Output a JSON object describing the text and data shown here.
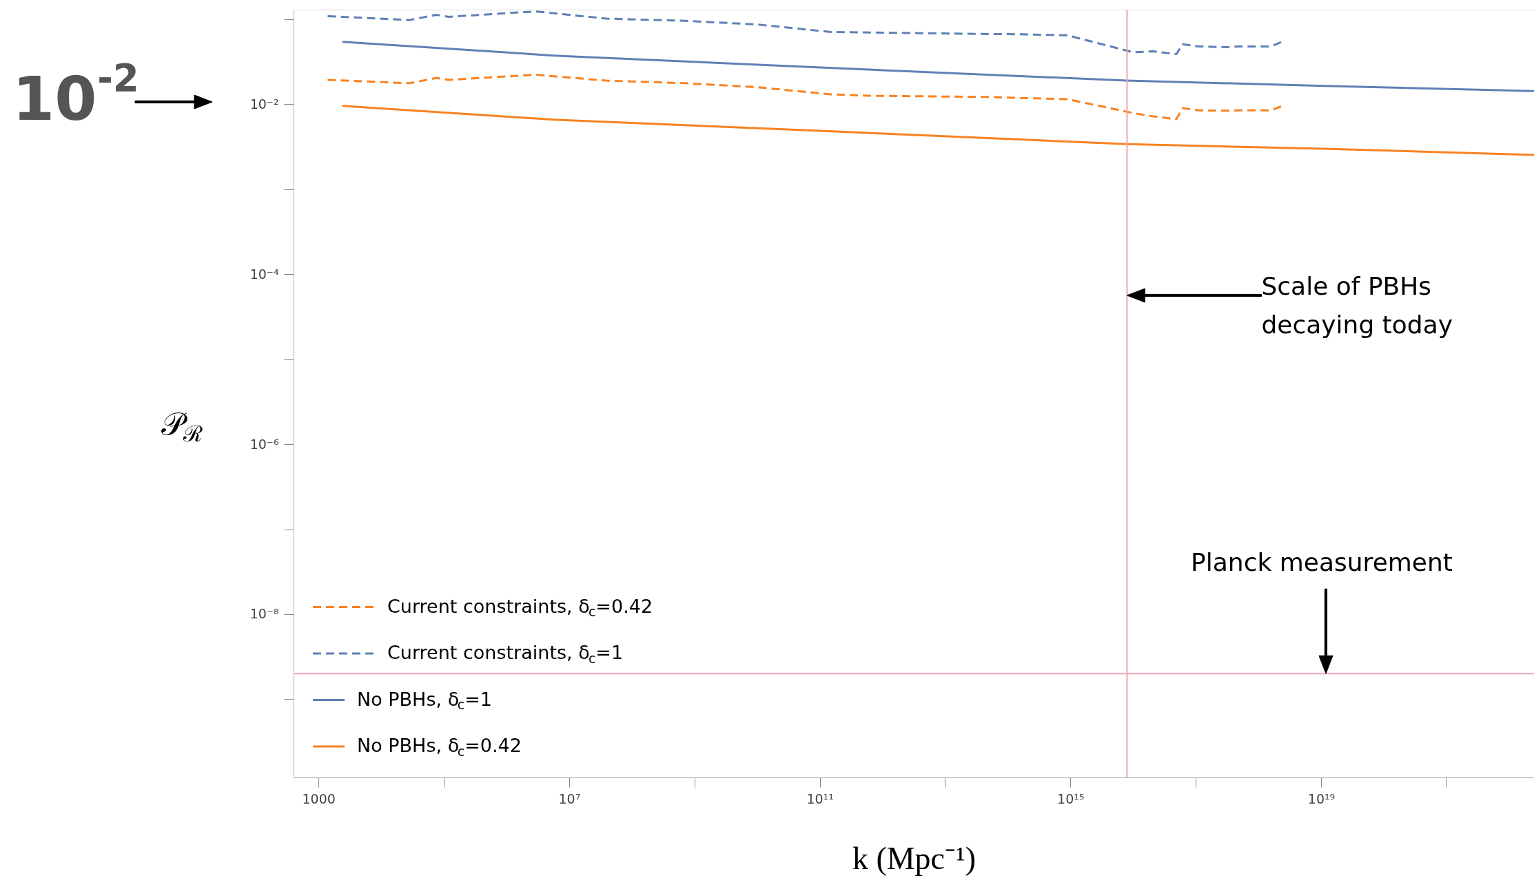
{
  "chart_data": {
    "type": "line",
    "xlabel": "k (Mpc⁻¹)",
    "ylabel": "𝒫$_{ℛ}$",
    "log": "xy",
    "grid": false,
    "legend": "bottom left",
    "xlim": [
      400,
      2.5e+22
    ],
    "ylim": [
      1.2e-10,
      0.13
    ],
    "xticks": [
      1000,
      {
        "value": 100000.0,
        "label": null
      },
      {
        "value": 10000000.0,
        "label": "10⁷"
      },
      {
        "value": 1000000000.0,
        "label": null
      },
      {
        "value": 100000000000.0,
        "label": "10¹¹"
      },
      {
        "value": 10000000000000.0,
        "label": null
      },
      {
        "value": 1000000000000000.0,
        "label": "10¹⁵"
      },
      {
        "value": 1e+17,
        "label": null
      },
      {
        "value": 1e+19,
        "label": "10¹⁹"
      },
      {
        "value": 1e+21,
        "label": null
      }
    ],
    "yticks": [
      {
        "value": 1e-09,
        "label": null
      },
      {
        "value": 1e-08,
        "label": "10⁻⁸"
      },
      {
        "value": 1e-07,
        "label": null
      },
      {
        "value": 1e-06,
        "label": "10⁻⁶"
      },
      {
        "value": 1e-05,
        "label": null
      },
      {
        "value": 0.0001,
        "label": "10⁻⁴"
      },
      {
        "value": 0.001,
        "label": null
      },
      {
        "value": 0.01,
        "label": "10⁻²"
      },
      {
        "value": 0.1,
        "label": null
      }
    ],
    "series": [
      {
        "name": "Current constraints, δ$_{c}$=0.42",
        "color": "#f9821f",
        "line_style": "dashed",
        "x": [
          1400.0,
          28000.0,
          76000.0,
          120000.0,
          2900000.0,
          39000000.0,
          710000000.0,
          10000000000.0,
          150000000000.0,
          630000000000.0,
          49000000000000.0,
          100000000000000.0,
          890000000000000.0,
          1e+16,
          2.1e+16,
          4.9e+16,
          6.2e+16,
          1.1e+17,
          3e+17,
          4.8e+17,
          1.6e+18,
          2.6e+18
        ],
        "values": [
          0.0194,
          0.0177,
          0.0204,
          0.0194,
          0.0223,
          0.019,
          0.0177,
          0.0159,
          0.0131,
          0.0126,
          0.0122,
          0.012,
          0.0115,
          0.0079,
          0.0072,
          0.0067,
          0.009,
          0.0085,
          0.0084,
          0.0085,
          0.0085,
          0.0098
        ]
      },
      {
        "name": "Current constraints, δ$_{c}$=1",
        "color": "#5e81b5",
        "line_style": "dashed",
        "x": [
          1400.0,
          28000.0,
          76000.0,
          120000.0,
          2900000.0,
          39000000.0,
          710000000.0,
          10000000000.0,
          150000000000.0,
          630000000000.0,
          49000000000000.0,
          100000000000000.0,
          890000000000000.0,
          1e+16,
          2.1e+16,
          4.9e+16,
          6.2e+16,
          1.1e+17,
          3e+17,
          4.8e+17,
          1.6e+18,
          2.6e+18
        ],
        "values": [
          0.109,
          0.098,
          0.113,
          0.107,
          0.124,
          0.102,
          0.096,
          0.087,
          0.071,
          0.07,
          0.067,
          0.067,
          0.065,
          0.041,
          0.042,
          0.039,
          0.051,
          0.048,
          0.047,
          0.048,
          0.048,
          0.056
        ]
      },
      {
        "name": "No PBHs, δ$_{c}$=1",
        "color": "#5e81b5",
        "line_style": "solid",
        "x": [
          2400.0,
          5600000.0,
          89000000000.0,
          7900000000000000.0,
          1.1e+19,
          2.5e+22
        ],
        "values": [
          0.0544,
          0.0375,
          0.0272,
          0.019,
          0.0165,
          0.0143
        ]
      },
      {
        "name": "No PBHs, δ$_{c}$=0.42",
        "color": "#f9821f",
        "line_style": "solid",
        "x": [
          2400.0,
          5600000.0,
          89000000000.0,
          7900000000000000.0,
          1.1e+19,
          2.5e+22
        ],
        "values": [
          0.0096,
          0.0066,
          0.0049,
          0.0034,
          0.003,
          0.00254
        ]
      }
    ],
    "ref_lines": [
      {
        "axis": "x",
        "value": 8000000000000000.0,
        "color": "#f4a3b3"
      },
      {
        "axis": "y",
        "value": 2e-09,
        "color": "#f4a3b3"
      }
    ],
    "annotations": [
      "10$^{-2}$",
      "Scale of PBHs decaying today",
      "Planck measurement"
    ]
  }
}
